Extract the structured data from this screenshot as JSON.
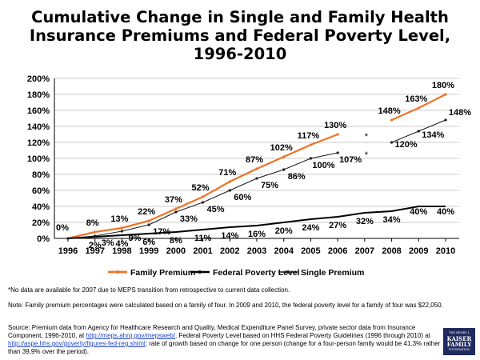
{
  "title_lines": [
    "Cumulative Change in Single and Family Health",
    "Insurance Premiums and Federal Poverty Level,",
    "1996-2010"
  ],
  "colors": {
    "family": "#ee7326",
    "poverty": "#000000",
    "single": "#1a1a1a",
    "grid": "#c8c8c8"
  },
  "chart_data": {
    "type": "line",
    "title": "Cumulative Change in Single and Family Health Insurance Premiums and Federal Poverty Level, 1996-2010",
    "xlabel": "",
    "ylabel": "",
    "categories": [
      "1996",
      "1997",
      "1998",
      "1999",
      "2000",
      "2001",
      "2002",
      "2003",
      "2004",
      "2005",
      "2006",
      "2007",
      "2008",
      "2009",
      "2010"
    ],
    "y_ticks": [
      "0%",
      "20%",
      "40%",
      "60%",
      "80%",
      "100%",
      "120%",
      "140%",
      "160%",
      "180%",
      "200%"
    ],
    "ylim": [
      0,
      200
    ],
    "grid": true,
    "legend_position": "bottom",
    "series": [
      {
        "name": "Family Premium",
        "values": [
          0,
          8,
          13,
          22,
          37,
          52,
          71,
          87,
          102,
          117,
          130,
          null,
          148,
          163,
          180
        ],
        "labels": [
          "0%",
          "8%",
          "13%",
          "22%",
          "37%",
          "52%",
          "71%",
          "87%",
          "102%",
          "117%",
          "130%",
          "",
          "148%",
          "163%",
          "180%"
        ]
      },
      {
        "name": "Federal Poverty Level",
        "values": [
          0,
          2,
          4,
          6,
          8,
          11,
          14,
          16,
          20,
          24,
          27,
          32,
          34,
          40,
          40
        ],
        "labels": [
          "",
          "2%",
          "4%",
          "6%",
          "8%",
          "11%",
          "14%",
          "16%",
          "20%",
          "24%",
          "27%",
          "32%",
          "34%",
          "40%",
          "40%"
        ]
      },
      {
        "name": "Single Premium",
        "values": [
          0,
          3,
          9,
          17,
          33,
          45,
          60,
          75,
          86,
          100,
          107,
          null,
          120,
          134,
          148
        ],
        "labels": [
          "",
          "3%",
          "9%",
          "17%",
          "33%",
          "45%",
          "60%",
          "75%",
          "86%",
          "100%",
          "107%",
          "",
          "120%",
          "134%",
          "148%"
        ]
      }
    ],
    "annotations": [
      "*",
      "*"
    ]
  },
  "notes": {
    "note1": "*No data are available for 2007 due to MEPS transition from retrospective to current data collection.",
    "note2": "Note: Family premium percentages were calculated based on a family of four. In 2009 and 2010, the federal poverty level for a family of four was $22,050.",
    "note3_a": "Source: Premium data from Agency for Healthcare Research and Quality, Medical Expenditure Panel Survey, private sector data from Insurance Component, 1996-2010, at ",
    "link1": "http://meps.ahrq.gov/mepsweb/",
    "note3_b": ". Federal Poverty Level based on HHS Federal Poverty Guidelines (1996 through 2010) at ",
    "link2": "http://aspe.hhs.gov/poverty/figures-fed-reg.shtml",
    "note3_c": "; rate of growth based on change for one person (change for a four-person family would be 41.3% rather than 39.9% over the period)."
  },
  "logo": {
    "line1": "THE HENRY J.",
    "line2": "KAISER",
    "line3": "FAMILY",
    "line4": "FOUNDATION"
  }
}
